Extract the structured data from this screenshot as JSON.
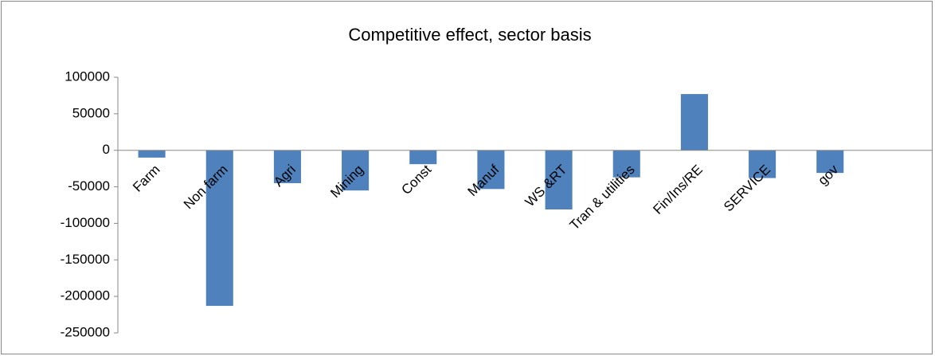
{
  "chart_data": {
    "type": "bar",
    "title": "Competitive effect, sector basis",
    "categories": [
      "Farm",
      "Non farm",
      "Agri",
      "Mining",
      "Const",
      "Manuf",
      "WS &RT",
      "Tran & utilities",
      "Fin/Ins/RE",
      "SERVICE",
      "gov",
      null
    ],
    "values": [
      -10000,
      -213000,
      -45000,
      -55000,
      -19000,
      -53000,
      -81000,
      -37000,
      77000,
      -38000,
      -31000,
      null
    ],
    "color": "#4f81bd",
    "ylim": [
      -250000,
      100000
    ],
    "yticks": [
      -250000,
      -200000,
      -150000,
      -100000,
      -50000,
      0,
      50000,
      100000
    ],
    "grid": false
  }
}
